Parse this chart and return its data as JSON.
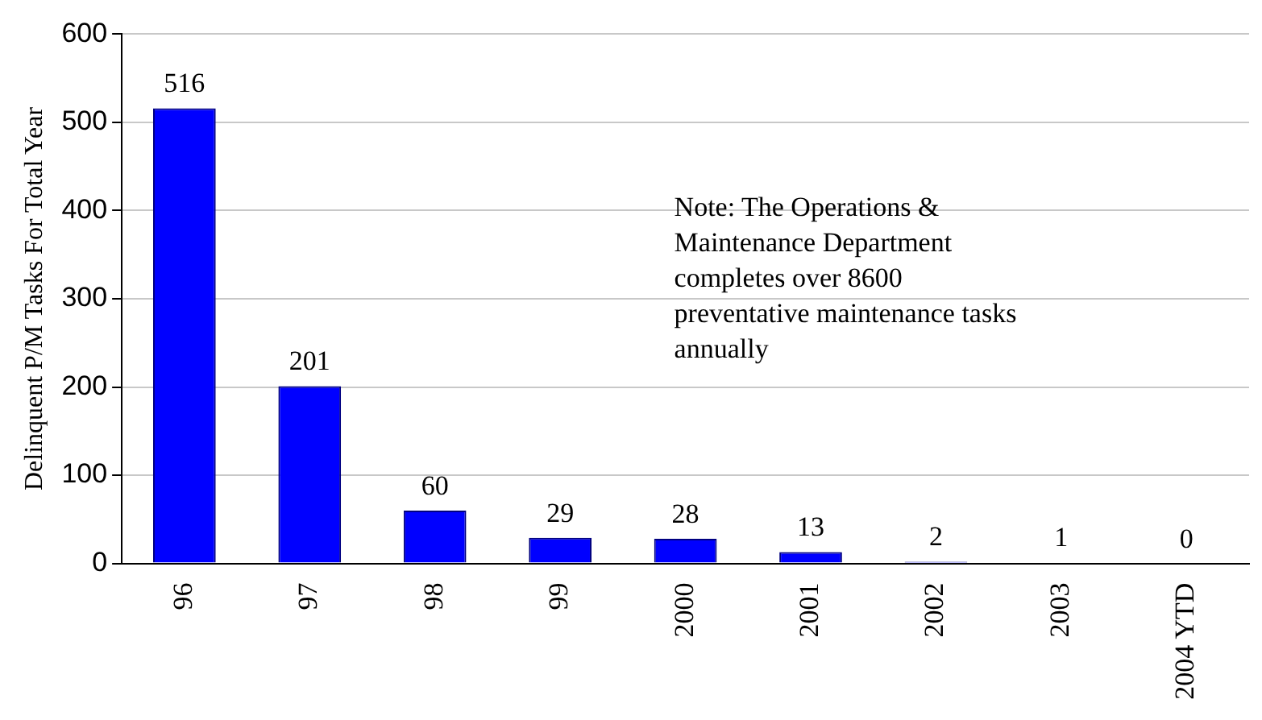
{
  "chart_data": {
    "type": "bar",
    "ylabel": "Delinquent P/M Tasks For Total Year",
    "categories": [
      "96",
      "97",
      "98",
      "99",
      "2000",
      "2001",
      "2002",
      "2003",
      "2004 YTD"
    ],
    "values": [
      516,
      201,
      60,
      29,
      28,
      13,
      2,
      1,
      0
    ],
    "color": "#0000ff",
    "ylim": [
      0,
      600
    ],
    "yticks": [
      0,
      100,
      200,
      300,
      400,
      500,
      600
    ],
    "grid": "y",
    "legend": false,
    "data_labels": true,
    "annotations": [
      "Note: The Operations & Maintenance Department completes over 8600 preventative maintenance tasks annually"
    ]
  }
}
